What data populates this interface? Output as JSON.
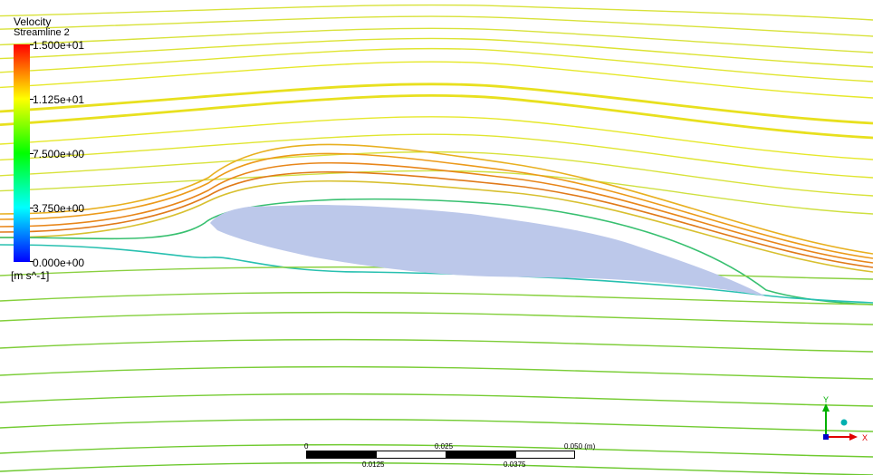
{
  "legend": {
    "title": "Velocity",
    "subtitle": "Streamline 2",
    "labels": [
      "1.500e+01",
      "1.125e+01",
      "7.500e+00",
      "3.750e+00",
      "0.000e+00"
    ],
    "unit": "[m s^-1]",
    "range": [
      0,
      15
    ]
  },
  "scale_bar": {
    "top_labels": [
      "0",
      "0.025",
      "0.050  (m)"
    ],
    "bottom_labels": [
      "0.0125",
      "0.0375"
    ]
  },
  "triad": {
    "x_label": "X",
    "y_label": "Y"
  },
  "colors": {
    "airfoil": "#bcc8ea",
    "x_axis": "#e00000",
    "y_axis": "#00b000",
    "z_dot": "#00b0b0",
    "background": "#ffffff"
  }
}
